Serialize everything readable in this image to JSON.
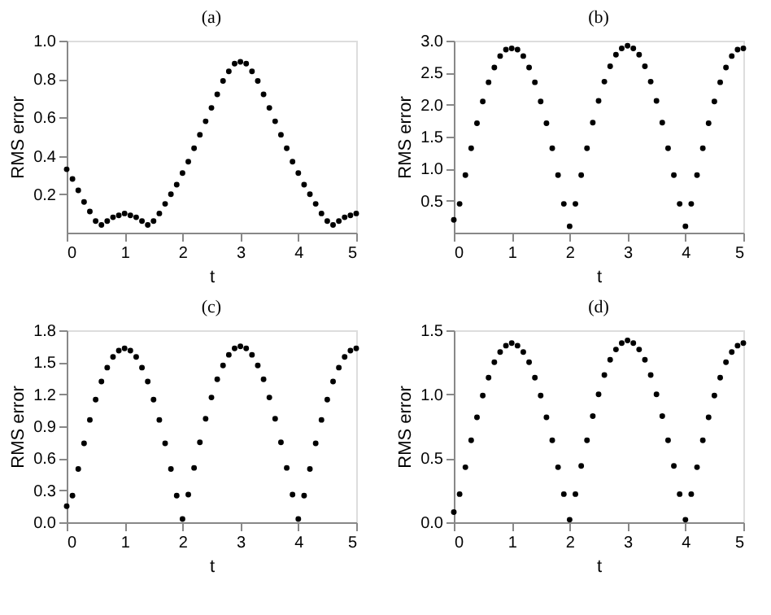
{
  "chart_data": [
    {
      "type": "scatter",
      "title": "(a)",
      "xlabel": "t",
      "ylabel": "RMS error",
      "marker": "circle",
      "grid": false,
      "x": [
        0,
        0.1,
        0.2,
        0.3,
        0.4,
        0.5,
        0.6,
        0.7,
        0.8,
        0.9,
        1,
        1.1,
        1.2,
        1.3,
        1.4,
        1.5,
        1.6,
        1.7,
        1.8,
        1.9,
        2,
        2.1,
        2.2,
        2.3,
        2.4,
        2.5,
        2.6,
        2.7,
        2.8,
        2.9,
        3,
        3.1,
        3.2,
        3.3,
        3.4,
        3.5,
        3.6,
        3.7,
        3.8,
        3.9,
        4,
        4.1,
        4.2,
        4.3,
        4.4,
        4.5,
        4.6,
        4.7,
        4.8,
        4.9,
        5
      ],
      "series": [
        {
          "color": "#000000",
          "values": [
            0.33,
            0.28,
            0.22,
            0.16,
            0.11,
            0.06,
            0.04,
            0.06,
            0.08,
            0.09,
            0.1,
            0.09,
            0.08,
            0.06,
            0.04,
            0.06,
            0.1,
            0.15,
            0.2,
            0.25,
            0.31,
            0.37,
            0.44,
            0.51,
            0.58,
            0.65,
            0.72,
            0.79,
            0.84,
            0.88,
            0.89,
            0.88,
            0.84,
            0.79,
            0.72,
            0.65,
            0.58,
            0.51,
            0.44,
            0.37,
            0.31,
            0.25,
            0.2,
            0.15,
            0.1,
            0.06,
            0.04,
            0.06,
            0.08,
            0.09,
            0.1
          ]
        }
      ],
      "xlim": [
        0,
        5
      ],
      "xticks": [
        0,
        1,
        2,
        3,
        4,
        5
      ],
      "ylim": [
        0,
        1.0
      ],
      "yticks": [
        0.2,
        0.4,
        0.6,
        0.8,
        {
          "value": 1.0,
          "label": "1.0"
        }
      ]
    },
    {
      "type": "scatter",
      "title": "(b)",
      "xlabel": "t",
      "ylabel": "RMS error",
      "marker": "circle",
      "grid": false,
      "x": [
        0,
        0.1,
        0.2,
        0.3,
        0.4,
        0.5,
        0.6,
        0.7,
        0.8,
        0.9,
        1,
        1.1,
        1.2,
        1.3,
        1.4,
        1.5,
        1.6,
        1.7,
        1.8,
        1.9,
        2,
        2.1,
        2.2,
        2.3,
        2.4,
        2.5,
        2.6,
        2.7,
        2.8,
        2.9,
        3,
        3.1,
        3.2,
        3.3,
        3.4,
        3.5,
        3.6,
        3.7,
        3.8,
        3.9,
        4,
        4.1,
        4.2,
        4.3,
        4.4,
        4.5,
        4.6,
        4.7,
        4.8,
        4.9,
        5
      ],
      "series": [
        {
          "color": "#000000",
          "values": [
            0.2,
            0.45,
            0.9,
            1.32,
            1.71,
            2.05,
            2.35,
            2.58,
            2.76,
            2.86,
            2.88,
            2.86,
            2.76,
            2.58,
            2.35,
            2.05,
            1.71,
            1.32,
            0.9,
            0.45,
            0.1,
            0.45,
            0.9,
            1.32,
            1.72,
            2.06,
            2.36,
            2.6,
            2.78,
            2.88,
            2.92,
            2.88,
            2.78,
            2.6,
            2.36,
            2.06,
            1.72,
            1.32,
            0.9,
            0.45,
            0.1,
            0.45,
            0.9,
            1.32,
            1.71,
            2.05,
            2.35,
            2.58,
            2.76,
            2.86,
            2.88
          ]
        }
      ],
      "xlim": [
        0,
        5
      ],
      "xticks": [
        0,
        1,
        2,
        3,
        4,
        5
      ],
      "ylim": [
        0,
        3.0
      ],
      "yticks": [
        0.5,
        {
          "value": 1.0,
          "label": "1.0"
        },
        1.5,
        {
          "value": 2.0,
          "label": "2.0"
        },
        2.5,
        {
          "value": 3.0,
          "label": "3.0"
        }
      ]
    },
    {
      "type": "scatter",
      "title": "(c)",
      "xlabel": "t",
      "ylabel": "RMS error",
      "marker": "circle",
      "grid": false,
      "x": [
        0,
        0.1,
        0.2,
        0.3,
        0.4,
        0.5,
        0.6,
        0.7,
        0.8,
        0.9,
        1,
        1.1,
        1.2,
        1.3,
        1.4,
        1.5,
        1.6,
        1.7,
        1.8,
        1.9,
        2,
        2.1,
        2.2,
        2.3,
        2.4,
        2.5,
        2.6,
        2.7,
        2.8,
        2.9,
        3,
        3.1,
        3.2,
        3.3,
        3.4,
        3.5,
        3.6,
        3.7,
        3.8,
        3.9,
        4,
        4.1,
        4.2,
        4.3,
        4.4,
        4.5,
        4.6,
        4.7,
        4.8,
        4.9,
        5
      ],
      "series": [
        {
          "color": "#000000",
          "values": [
            0.15,
            0.25,
            0.5,
            0.74,
            0.96,
            1.15,
            1.32,
            1.45,
            1.55,
            1.61,
            1.63,
            1.61,
            1.55,
            1.45,
            1.32,
            1.15,
            0.96,
            0.74,
            0.5,
            0.25,
            0.03,
            0.26,
            0.51,
            0.75,
            0.97,
            1.17,
            1.34,
            1.47,
            1.57,
            1.63,
            1.65,
            1.63,
            1.57,
            1.47,
            1.34,
            1.17,
            0.97,
            0.75,
            0.51,
            0.26,
            0.03,
            0.25,
            0.5,
            0.74,
            0.96,
            1.15,
            1.32,
            1.45,
            1.55,
            1.61,
            1.63
          ]
        }
      ],
      "xlim": [
        0,
        5
      ],
      "xticks": [
        0,
        1,
        2,
        3,
        4,
        5
      ],
      "ylim": [
        0,
        1.8
      ],
      "yticks": [
        {
          "value": 0,
          "label": "0.0"
        },
        0.3,
        0.6,
        0.9,
        1.2,
        1.5,
        1.8
      ]
    },
    {
      "type": "scatter",
      "title": "(d)",
      "xlabel": "t",
      "ylabel": "RMS error",
      "marker": "circle",
      "grid": false,
      "x": [
        0,
        0.1,
        0.2,
        0.3,
        0.4,
        0.5,
        0.6,
        0.7,
        0.8,
        0.9,
        1,
        1.1,
        1.2,
        1.3,
        1.4,
        1.5,
        1.6,
        1.7,
        1.8,
        1.9,
        2,
        2.1,
        2.2,
        2.3,
        2.4,
        2.5,
        2.6,
        2.7,
        2.8,
        2.9,
        3,
        3.1,
        3.2,
        3.3,
        3.4,
        3.5,
        3.6,
        3.7,
        3.8,
        3.9,
        4,
        4.1,
        4.2,
        4.3,
        4.4,
        4.5,
        4.6,
        4.7,
        4.8,
        4.9,
        5
      ],
      "series": [
        {
          "color": "#000000",
          "values": [
            0.08,
            0.22,
            0.43,
            0.64,
            0.82,
            0.99,
            1.13,
            1.25,
            1.33,
            1.38,
            1.4,
            1.38,
            1.33,
            1.25,
            1.13,
            0.99,
            0.82,
            0.64,
            0.43,
            0.22,
            0.02,
            0.22,
            0.44,
            0.64,
            0.83,
            1.0,
            1.15,
            1.27,
            1.35,
            1.4,
            1.42,
            1.4,
            1.35,
            1.27,
            1.15,
            1.0,
            0.83,
            0.64,
            0.44,
            0.22,
            0.02,
            0.22,
            0.43,
            0.64,
            0.82,
            0.99,
            1.13,
            1.25,
            1.33,
            1.38,
            1.4
          ]
        }
      ],
      "xlim": [
        0,
        5
      ],
      "xticks": [
        0,
        1,
        2,
        3,
        4,
        5
      ],
      "ylim": [
        0,
        1.5
      ],
      "yticks": [
        {
          "value": 0,
          "label": "0.0"
        },
        0.5,
        {
          "value": 1.0,
          "label": "1.0"
        },
        1.5
      ]
    }
  ]
}
